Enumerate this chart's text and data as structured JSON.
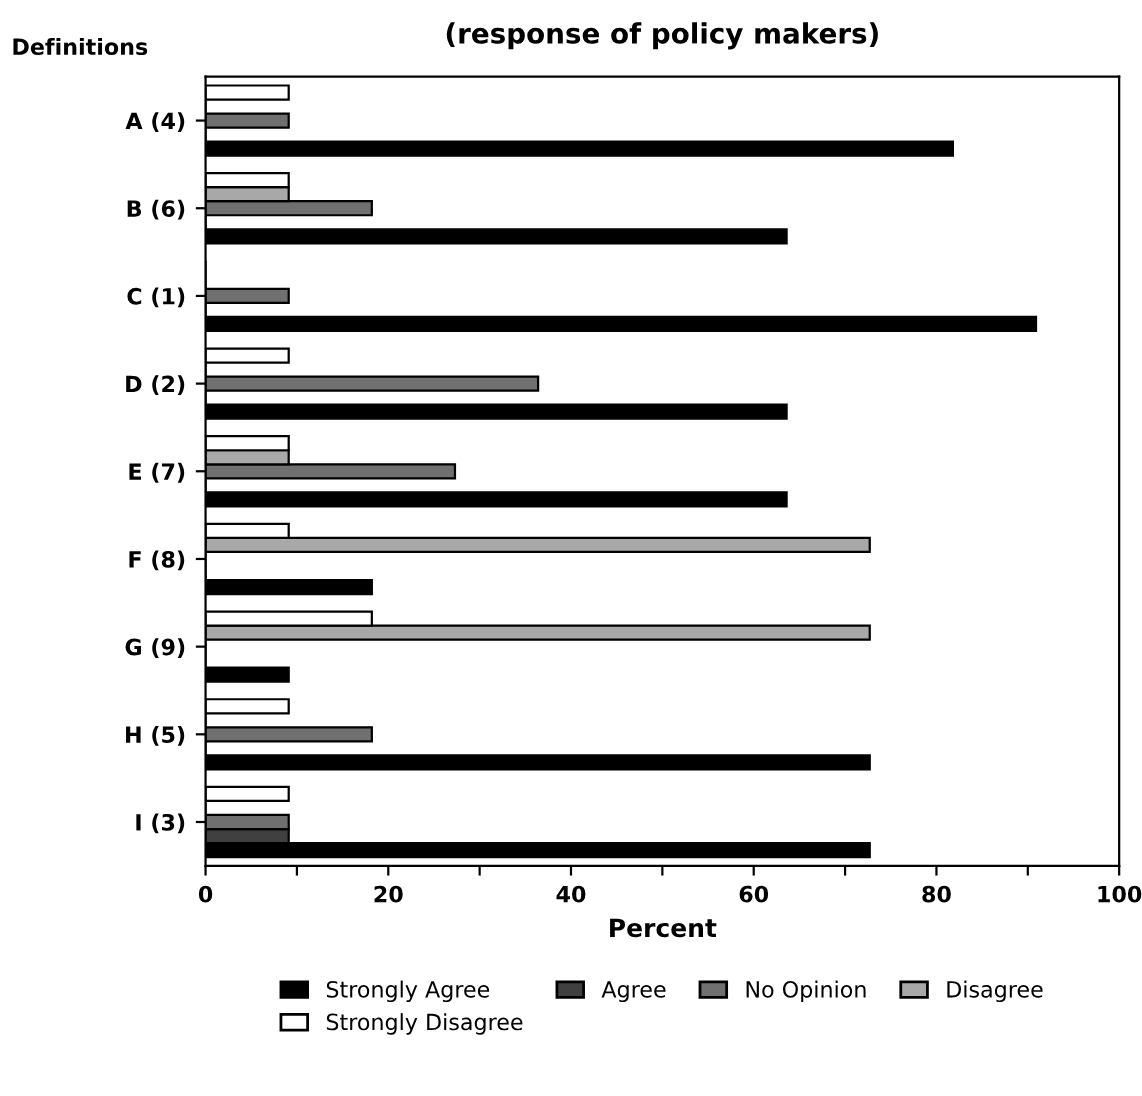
{
  "chart_data": {
    "type": "bar",
    "orientation": "horizontal",
    "title": "(response of policy makers)",
    "ylabel": "Definitions",
    "xlabel": "Percent",
    "categories": [
      "A (4)",
      "B (6)",
      "C (1)",
      "D (2)",
      "E (7)",
      "F (8)",
      "G (9)",
      "H (5)",
      "I (3)"
    ],
    "series": [
      {
        "name": "Strongly Agree",
        "color": "#000000",
        "values": [
          81.8,
          63.6,
          90.9,
          63.6,
          63.6,
          18.2,
          9.1,
          72.7,
          72.7
        ]
      },
      {
        "name": "Agree",
        "color": "#404040",
        "values": [
          0,
          0,
          0,
          0,
          0,
          0,
          0,
          0,
          9.1
        ]
      },
      {
        "name": "No Opinion",
        "color": "#707070",
        "values": [
          9.1,
          18.2,
          9.1,
          36.4,
          27.3,
          0,
          0,
          18.2,
          9.1
        ]
      },
      {
        "name": "Disagree",
        "color": "#a8a8a8",
        "values": [
          0,
          9.1,
          0,
          0,
          9.1,
          72.7,
          72.7,
          0,
          0
        ]
      },
      {
        "name": "Strongly Disagree",
        "color": "#ffffff",
        "values": [
          9.1,
          9.1,
          0,
          9.1,
          9.1,
          9.1,
          18.2,
          9.1,
          9.1
        ]
      }
    ],
    "xlim": [
      0,
      100
    ],
    "xticks": [
      0,
      {
        "value": 10,
        "label": null
      },
      20,
      {
        "value": 30,
        "label": null
      },
      40,
      {
        "value": 50,
        "label": null
      },
      60,
      {
        "value": 70,
        "label": null
      },
      80,
      {
        "value": 90,
        "label": null
      },
      100
    ],
    "legend": "bottom",
    "grid": false
  }
}
